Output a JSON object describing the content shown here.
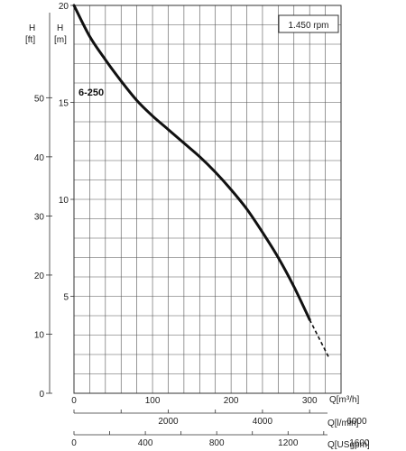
{
  "chart_data": {
    "type": "line",
    "title": "",
    "speed_label": "1.450 rpm",
    "series": [
      {
        "name": "6-250",
        "x": [
          0,
          20,
          40,
          60,
          80,
          100,
          120,
          140,
          160,
          180,
          200,
          220,
          240,
          260,
          280,
          300
        ],
        "y": [
          20.0,
          18.4,
          17.2,
          16.1,
          15.1,
          14.3,
          13.6,
          12.9,
          12.2,
          11.4,
          10.5,
          9.5,
          8.3,
          7.0,
          5.5,
          3.8
        ],
        "extension": {
          "x": [
            300,
            325
          ],
          "y": [
            3.8,
            1.8
          ],
          "style": "dashed"
        }
      }
    ],
    "axes": {
      "y_m": {
        "label_top": "H",
        "label_bottom": "[m]",
        "range": [
          0,
          20
        ],
        "ticks": [
          5,
          10,
          15,
          20
        ]
      },
      "y_ft": {
        "label_top": "H",
        "label_bottom": "[ft]",
        "range": [
          0,
          65.6
        ],
        "ticks": [
          0,
          10,
          20,
          30,
          40,
          50
        ]
      },
      "x_m3h": {
        "label": "Q[m³/h]",
        "range": [
          0,
          340
        ],
        "ticks": [
          0,
          100,
          200,
          300
        ]
      },
      "x_lmin": {
        "label": "Q[l/min]",
        "range": [
          0,
          5667
        ],
        "ticks": [
          2000,
          4000,
          6000
        ]
      },
      "x_usgpm": {
        "label": "Q[USgpm]",
        "range": [
          0,
          1497
        ],
        "ticks": [
          0,
          400,
          800,
          1200,
          1600
        ]
      }
    },
    "grid": true
  }
}
